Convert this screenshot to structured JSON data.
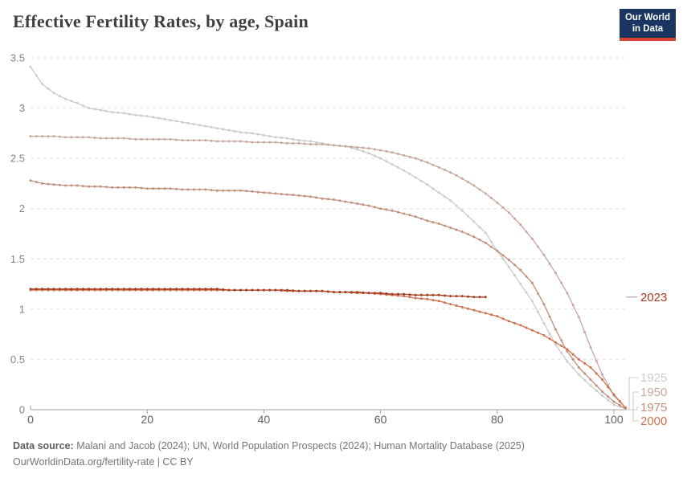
{
  "header": {
    "title": "Effective Fertility Rates, by age, Spain",
    "logo": {
      "line1": "Our World",
      "line2": "in Data",
      "bg": "#1a3562",
      "accent": "#d8432f"
    }
  },
  "footer": {
    "source_label": "Data source:",
    "source_text": " Malani and Jacob (2024); UN, World Population Prospects (2024); Human Mortality Database (2025)",
    "note": "OurWorldinData.org/fertility-rate | CC BY"
  },
  "chart_data": {
    "type": "line",
    "title": "Effective Fertility Rates, by age, Spain",
    "xlabel": "",
    "ylabel": "",
    "xlim": [
      0,
      102
    ],
    "ylim": [
      0,
      3.5
    ],
    "xticks": [
      0,
      20,
      40,
      60,
      80,
      100
    ],
    "yticks": [
      0,
      0.5,
      1,
      1.5,
      2,
      2.5,
      3,
      3.5
    ],
    "grid": "horizontal-dashed",
    "legend_position": "right",
    "x_step": 2,
    "colors": {
      "grid": "#e2e2e2",
      "axis": "#a3a3a3",
      "y_tick_label": "#858585",
      "x_tick_label": "#5f5f5f",
      "connector": "#cdcdcd",
      "inline_dash": "#a9a9a9"
    },
    "series": [
      {
        "name": "1925",
        "color": "#cbcbcb",
        "legend": "bracket",
        "x_start": 0,
        "values": [
          3.41,
          3.24,
          3.15,
          3.09,
          3.05,
          3.0,
          2.98,
          2.96,
          2.95,
          2.93,
          2.92,
          2.9,
          2.88,
          2.86,
          2.84,
          2.82,
          2.8,
          2.78,
          2.76,
          2.75,
          2.73,
          2.71,
          2.7,
          2.68,
          2.67,
          2.65,
          2.63,
          2.62,
          2.59,
          2.55,
          2.5,
          2.44,
          2.38,
          2.31,
          2.24,
          2.16,
          2.08,
          1.98,
          1.87,
          1.76,
          1.58,
          1.42,
          1.25,
          1.08,
          0.86,
          0.65,
          0.48,
          0.35,
          0.24,
          0.14,
          0.05,
          0.01
        ]
      },
      {
        "name": "1950",
        "color": "#c7a79e",
        "legend": "bracket",
        "x_start": 0,
        "values": [
          2.72,
          2.72,
          2.72,
          2.71,
          2.71,
          2.71,
          2.7,
          2.7,
          2.7,
          2.69,
          2.69,
          2.69,
          2.69,
          2.68,
          2.68,
          2.68,
          2.67,
          2.67,
          2.67,
          2.66,
          2.66,
          2.66,
          2.65,
          2.65,
          2.64,
          2.64,
          2.63,
          2.62,
          2.61,
          2.6,
          2.58,
          2.56,
          2.53,
          2.5,
          2.46,
          2.41,
          2.36,
          2.3,
          2.23,
          2.15,
          2.06,
          1.96,
          1.84,
          1.7,
          1.54,
          1.36,
          1.16,
          0.92,
          0.62,
          0.35,
          0.14,
          0.02
        ]
      },
      {
        "name": "1975",
        "color": "#c28f7d",
        "legend": "bracket",
        "x_start": 0,
        "values": [
          2.28,
          2.25,
          2.24,
          2.23,
          2.23,
          2.22,
          2.22,
          2.21,
          2.21,
          2.21,
          2.2,
          2.2,
          2.2,
          2.19,
          2.19,
          2.19,
          2.18,
          2.18,
          2.18,
          2.17,
          2.16,
          2.15,
          2.14,
          2.13,
          2.12,
          2.1,
          2.09,
          2.07,
          2.05,
          2.03,
          2.0,
          1.98,
          1.95,
          1.92,
          1.88,
          1.85,
          1.81,
          1.77,
          1.72,
          1.66,
          1.58,
          1.49,
          1.39,
          1.26,
          1.05,
          0.8,
          0.58,
          0.42,
          0.3,
          0.18,
          0.08,
          0.01
        ]
      },
      {
        "name": "2000",
        "color": "#cc7351",
        "legend": "bracket",
        "x_start": 0,
        "values": [
          1.19,
          1.19,
          1.19,
          1.19,
          1.19,
          1.19,
          1.19,
          1.19,
          1.19,
          1.19,
          1.19,
          1.19,
          1.19,
          1.19,
          1.19,
          1.19,
          1.19,
          1.19,
          1.19,
          1.19,
          1.19,
          1.19,
          1.18,
          1.18,
          1.18,
          1.18,
          1.17,
          1.17,
          1.16,
          1.16,
          1.15,
          1.14,
          1.13,
          1.11,
          1.1,
          1.08,
          1.05,
          1.02,
          0.99,
          0.96,
          0.93,
          0.88,
          0.84,
          0.79,
          0.74,
          0.67,
          0.6,
          0.5,
          0.42,
          0.3,
          0.15,
          0.02
        ]
      },
      {
        "name": "2023",
        "color": "#a53b1c",
        "legend": "inline",
        "x_start": 0,
        "values": [
          1.2,
          1.2,
          1.2,
          1.2,
          1.2,
          1.2,
          1.2,
          1.2,
          1.2,
          1.2,
          1.2,
          1.2,
          1.2,
          1.2,
          1.2,
          1.2,
          1.2,
          1.19,
          1.19,
          1.19,
          1.19,
          1.19,
          1.19,
          1.18,
          1.18,
          1.18,
          1.17,
          1.17,
          1.17,
          1.16,
          1.16,
          1.15,
          1.15,
          1.14,
          1.14,
          1.14,
          1.13,
          1.13,
          1.12,
          1.12
        ]
      }
    ]
  }
}
